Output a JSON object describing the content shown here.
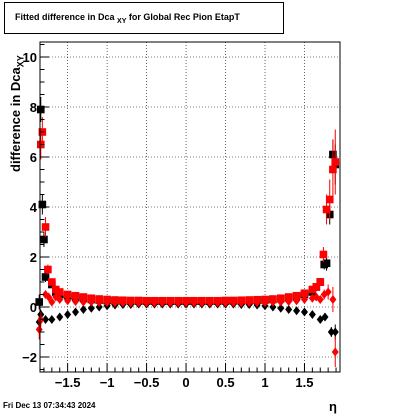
{
  "title": {
    "text": "Fitted difference in Dca",
    "sub": "XY",
    "rest": " for Global Rec Pion EtapT"
  },
  "footer": "Fri Dec 13 07:34:43 2024",
  "chart_data": {
    "type": "scatter",
    "title": "Fitted difference in Dca_XY for Global Rec Pion EtapT",
    "xlabel": "η",
    "ylabel": "difference in Dca_XY",
    "xlim": [
      -1.85,
      1.95
    ],
    "ylim": [
      -2.6,
      10.6
    ],
    "xticks": [
      -1.5,
      -1,
      -0.5,
      0,
      0.5,
      1,
      1.5
    ],
    "xtick_labels": [
      "−1.5",
      "−1",
      "−0.5",
      "0",
      "0.5",
      "1",
      "1.5"
    ],
    "yticks": [
      -2,
      0,
      2,
      4,
      6,
      8,
      10
    ],
    "ytick_labels": [
      "−2",
      "0",
      "2",
      "4",
      "6",
      "8",
      "10"
    ],
    "grid": true,
    "colors": {
      "black_series": "#000000",
      "red_series": "#ff0000"
    },
    "series": [
      {
        "name": "",
        "marker": "square",
        "color": "#000000",
        "x": [
          -1.86,
          -1.84,
          -1.82,
          -1.8,
          -1.78,
          -1.7,
          -1.65,
          -1.6,
          -1.5,
          -1.4,
          -1.3,
          -1.2,
          -1.1,
          -1.0,
          -0.9,
          -0.8,
          -0.7,
          -0.6,
          -0.5,
          -0.4,
          -0.3,
          -0.2,
          -0.1,
          0.0,
          0.1,
          0.2,
          0.3,
          0.4,
          0.5,
          0.6,
          0.7,
          0.8,
          0.9,
          1.0,
          1.1,
          1.2,
          1.3,
          1.4,
          1.5,
          1.6,
          1.65,
          1.7,
          1.75,
          1.78,
          1.82,
          1.86,
          1.89
        ],
        "y": [
          0.2,
          7.9,
          4.1,
          2.7,
          1.2,
          0.9,
          0.6,
          0.5,
          0.45,
          0.4,
          0.35,
          0.3,
          0.28,
          0.26,
          0.25,
          0.25,
          0.24,
          0.24,
          0.24,
          0.23,
          0.23,
          0.23,
          0.23,
          0.23,
          0.23,
          0.23,
          0.23,
          0.24,
          0.24,
          0.25,
          0.25,
          0.26,
          0.27,
          0.28,
          0.3,
          0.33,
          0.37,
          0.42,
          0.5,
          0.6,
          0.8,
          1.0,
          1.7,
          1.75,
          3.7,
          6.1,
          5.7
        ],
        "err": [
          0.3,
          0.5,
          0.4,
          0.3,
          0.2,
          0.1,
          0.1,
          0.05,
          0.05,
          0.05,
          0.05,
          0.05,
          0.05,
          0.05,
          0.05,
          0.05,
          0.05,
          0.05,
          0.05,
          0.05,
          0.05,
          0.05,
          0.05,
          0.05,
          0.05,
          0.05,
          0.05,
          0.05,
          0.05,
          0.05,
          0.05,
          0.05,
          0.05,
          0.05,
          0.05,
          0.05,
          0.05,
          0.05,
          0.05,
          0.1,
          0.1,
          0.15,
          0.2,
          0.3,
          0.4,
          0.6,
          0.8
        ]
      },
      {
        "name": "",
        "marker": "square",
        "color": "#ff0000",
        "x": [
          -1.84,
          -1.82,
          -1.78,
          -1.75,
          -1.7,
          -1.65,
          -1.6,
          -1.5,
          -1.4,
          -1.3,
          -1.2,
          -1.1,
          -1.0,
          -0.9,
          -0.8,
          -0.7,
          -0.6,
          -0.5,
          -0.4,
          -0.3,
          -0.2,
          -0.1,
          0.0,
          0.1,
          0.2,
          0.3,
          0.4,
          0.5,
          0.6,
          0.7,
          0.8,
          0.9,
          1.0,
          1.1,
          1.2,
          1.3,
          1.4,
          1.5,
          1.6,
          1.65,
          1.7,
          1.74,
          1.78,
          1.82,
          1.86,
          1.89
        ],
        "y": [
          6.5,
          7.0,
          3.2,
          1.5,
          1.0,
          0.7,
          0.6,
          0.5,
          0.45,
          0.4,
          0.35,
          0.32,
          0.3,
          0.28,
          0.27,
          0.26,
          0.26,
          0.25,
          0.25,
          0.25,
          0.25,
          0.25,
          0.25,
          0.25,
          0.25,
          0.25,
          0.25,
          0.26,
          0.26,
          0.27,
          0.28,
          0.29,
          0.3,
          0.32,
          0.35,
          0.4,
          0.45,
          0.55,
          0.7,
          0.8,
          1.0,
          2.1,
          3.9,
          4.3,
          5.5,
          5.8
        ],
        "err": [
          0.6,
          0.6,
          0.4,
          0.2,
          0.1,
          0.1,
          0.05,
          0.05,
          0.05,
          0.05,
          0.05,
          0.05,
          0.05,
          0.05,
          0.05,
          0.05,
          0.05,
          0.05,
          0.05,
          0.05,
          0.05,
          0.05,
          0.05,
          0.05,
          0.05,
          0.05,
          0.05,
          0.05,
          0.05,
          0.05,
          0.05,
          0.05,
          0.05,
          0.05,
          0.05,
          0.05,
          0.05,
          0.05,
          0.1,
          0.1,
          0.15,
          0.3,
          0.6,
          0.8,
          1.2,
          1.3
        ]
      },
      {
        "name": "",
        "marker": "diamond",
        "color": "#000000",
        "x": [
          -1.86,
          -1.84,
          -1.78,
          -1.7,
          -1.6,
          -1.5,
          -1.4,
          -1.3,
          -1.2,
          -1.1,
          -1.0,
          -0.9,
          -0.8,
          -0.7,
          -0.6,
          -0.5,
          -0.4,
          -0.3,
          -0.2,
          -0.1,
          0.0,
          0.1,
          0.2,
          0.3,
          0.4,
          0.5,
          0.6,
          0.7,
          0.8,
          0.9,
          1.0,
          1.1,
          1.2,
          1.3,
          1.4,
          1.5,
          1.6,
          1.7,
          1.76,
          1.84,
          1.89
        ],
        "y": [
          -0.6,
          -0.3,
          -0.5,
          -0.5,
          -0.4,
          -0.3,
          -0.2,
          -0.1,
          -0.05,
          0.0,
          0.05,
          0.08,
          0.1,
          0.1,
          0.12,
          0.12,
          0.12,
          0.12,
          0.12,
          0.12,
          0.12,
          0.12,
          0.12,
          0.12,
          0.12,
          0.12,
          0.12,
          0.1,
          0.1,
          0.08,
          0.05,
          0.0,
          -0.05,
          -0.1,
          -0.15,
          -0.2,
          -0.3,
          -0.5,
          -0.4,
          -1.0,
          -1.0
        ],
        "err": [
          0.3,
          0.2,
          0.1,
          0.05,
          0.05,
          0.05,
          0.05,
          0.05,
          0.05,
          0.05,
          0.05,
          0.05,
          0.05,
          0.05,
          0.05,
          0.05,
          0.05,
          0.05,
          0.05,
          0.05,
          0.05,
          0.05,
          0.05,
          0.05,
          0.05,
          0.05,
          0.05,
          0.05,
          0.05,
          0.05,
          0.05,
          0.05,
          0.05,
          0.05,
          0.05,
          0.05,
          0.05,
          0.1,
          0.1,
          0.2,
          0.3
        ]
      },
      {
        "name": "",
        "marker": "diamond",
        "color": "#ff0000",
        "x": [
          -1.86,
          -1.84,
          -1.78,
          -1.74,
          -1.7,
          -1.65,
          -1.6,
          -1.5,
          -1.4,
          -1.3,
          -1.2,
          -1.1,
          -1.0,
          -0.9,
          -0.8,
          -0.7,
          -0.6,
          -0.5,
          -0.4,
          -0.3,
          -0.2,
          -0.1,
          0.0,
          0.1,
          0.2,
          0.3,
          0.4,
          0.5,
          0.6,
          0.7,
          0.8,
          0.9,
          1.0,
          1.1,
          1.2,
          1.3,
          1.4,
          1.5,
          1.6,
          1.65,
          1.7,
          1.75,
          1.8,
          1.86,
          1.89
        ],
        "y": [
          -0.9,
          -0.5,
          0.5,
          0.4,
          0.2,
          0.4,
          0.3,
          0.25,
          0.22,
          0.2,
          0.2,
          0.18,
          0.18,
          0.17,
          0.17,
          0.17,
          0.17,
          0.17,
          0.17,
          0.17,
          0.17,
          0.17,
          0.17,
          0.17,
          0.17,
          0.17,
          0.17,
          0.17,
          0.17,
          0.17,
          0.18,
          0.18,
          0.18,
          0.2,
          0.2,
          0.22,
          0.25,
          0.3,
          0.35,
          0.4,
          0.3,
          0.5,
          0.6,
          0.3,
          -1.8
        ],
        "err": [
          0.4,
          0.3,
          0.1,
          0.1,
          0.1,
          0.05,
          0.05,
          0.05,
          0.05,
          0.05,
          0.05,
          0.05,
          0.05,
          0.05,
          0.05,
          0.05,
          0.05,
          0.05,
          0.05,
          0.05,
          0.05,
          0.05,
          0.05,
          0.05,
          0.05,
          0.05,
          0.05,
          0.05,
          0.05,
          0.05,
          0.05,
          0.05,
          0.05,
          0.05,
          0.05,
          0.05,
          0.05,
          0.05,
          0.05,
          0.1,
          0.1,
          0.2,
          0.3,
          0.5,
          0.6
        ]
      }
    ]
  }
}
